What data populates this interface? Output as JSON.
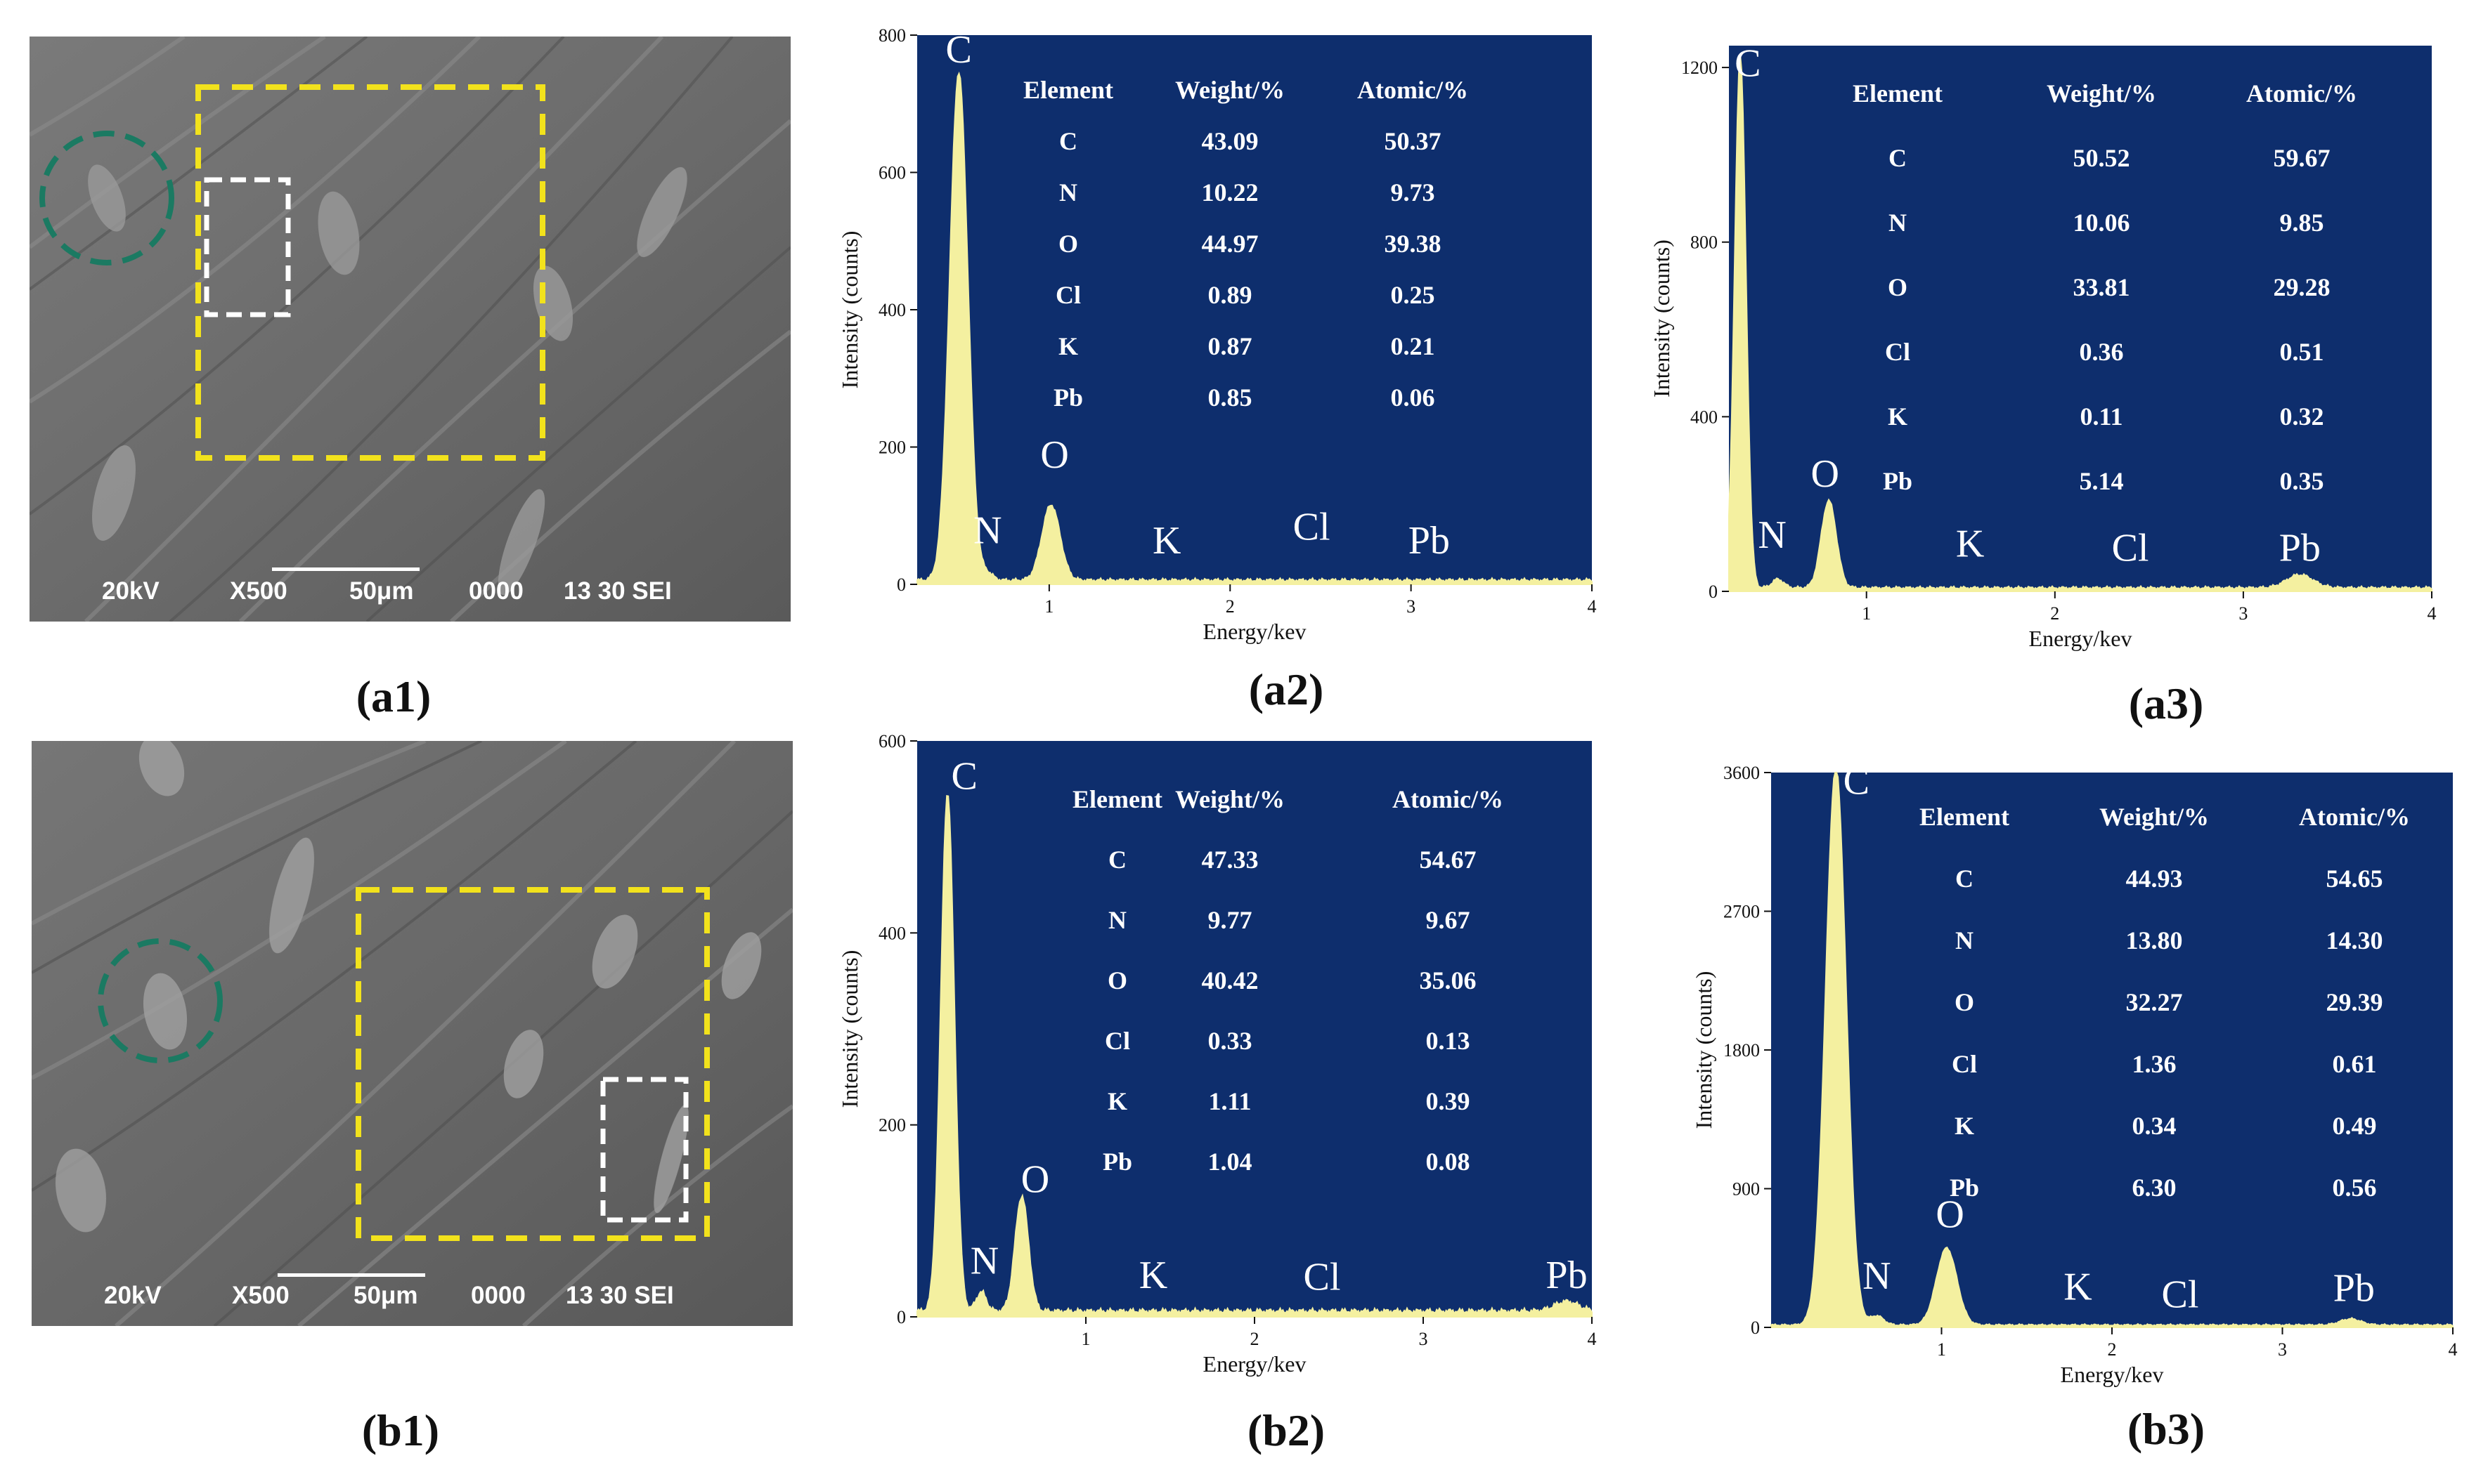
{
  "figure": {
    "panel_labels": {
      "a1": "(a1)",
      "a2": "(a2)",
      "a3": "(a3)",
      "b1": "(b1)",
      "b2": "(b2)",
      "b3": "(b3)"
    }
  },
  "sem_images": [
    {
      "id": "a1",
      "info": {
        "kv": "20kV",
        "mag": "X500",
        "scale": "50μm",
        "code": "0000",
        "extra": "13 30 SEI"
      }
    },
    {
      "id": "b1",
      "info": {
        "kv": "20kV",
        "mag": "X500",
        "scale": "50μm",
        "code": "0000",
        "extra": "13 30 SEI"
      }
    }
  ],
  "colors": {
    "plot_bg": "#0e2e6d",
    "spectrum": "#f4f0a0",
    "highlight_box": "#f2e21c",
    "detail_box": "#ffffff",
    "circle": "#1b7a62"
  },
  "chart_data": [
    {
      "id": "a2",
      "type": "area",
      "xlabel": "Energy/kev",
      "ylabel": "Intensity (counts)",
      "xlim": [
        0.27,
        4.0
      ],
      "ylim": [
        0,
        800
      ],
      "xticks": [
        1,
        2,
        3,
        4
      ],
      "yticks": [
        0,
        200,
        400,
        600,
        800
      ],
      "peaks": [
        {
          "element": "C",
          "energy": 0.5,
          "counts": 740,
          "width": 0.05,
          "label_x": 0.5,
          "label_y": 760
        },
        {
          "element": "N",
          "energy": 0.66,
          "counts": 10,
          "width": 0.03,
          "label_x": 0.66,
          "label_y": 60
        },
        {
          "element": "O",
          "energy": 1.01,
          "counts": 110,
          "width": 0.05,
          "label_x": 1.03,
          "label_y": 170
        },
        {
          "element": "K",
          "energy": 1.7,
          "counts": 0,
          "width": 0.03,
          "label_x": 1.65,
          "label_y": 45
        },
        {
          "element": "Cl",
          "energy": 2.45,
          "counts": 0,
          "width": 0.03,
          "label_x": 2.45,
          "label_y": 65
        },
        {
          "element": "Pb",
          "energy": 3.15,
          "counts": 0,
          "width": 0.05,
          "label_x": 3.1,
          "label_y": 45
        }
      ],
      "baseline": 6,
      "table": {
        "headers": [
          "Element",
          "Weight/%",
          "Atomic/%"
        ],
        "rows": [
          [
            "C",
            "43.09",
            "50.37"
          ],
          [
            "N",
            "10.22",
            "9.73"
          ],
          [
            "O",
            "44.97",
            "39.38"
          ],
          [
            "Cl",
            "0.89",
            "0.25"
          ],
          [
            "K",
            "0.87",
            "0.21"
          ],
          [
            "Pb",
            "0.85",
            "0.06"
          ]
        ]
      }
    },
    {
      "id": "a3",
      "type": "area",
      "xlabel": "Energy/kev",
      "ylabel": "Intensity (counts)",
      "xlim": [
        0.27,
        4.0
      ],
      "ylim": [
        0,
        1250
      ],
      "xticks": [
        1,
        2,
        3,
        4
      ],
      "yticks": [
        0,
        400,
        800,
        1200
      ],
      "peaks": [
        {
          "element": "C",
          "energy": 0.33,
          "counts": 1220,
          "width": 0.03,
          "label_x": 0.37,
          "label_y": 1180
        },
        {
          "element": "N",
          "energy": 0.53,
          "counts": 20,
          "width": 0.03,
          "label_x": 0.5,
          "label_y": 100
        },
        {
          "element": "O",
          "energy": 0.8,
          "counts": 200,
          "width": 0.04,
          "label_x": 0.78,
          "label_y": 240
        },
        {
          "element": "K",
          "energy": 1.6,
          "counts": 0,
          "width": 0.03,
          "label_x": 1.55,
          "label_y": 80
        },
        {
          "element": "Cl",
          "energy": 2.3,
          "counts": 0,
          "width": 0.03,
          "label_x": 2.4,
          "label_y": 70
        },
        {
          "element": "Pb",
          "energy": 3.3,
          "counts": 30,
          "width": 0.07,
          "label_x": 3.3,
          "label_y": 70
        }
      ],
      "baseline": 8,
      "table": {
        "headers": [
          "Element",
          "Weight/%",
          "Atomic/%"
        ],
        "rows": [
          [
            "C",
            "50.52",
            "59.67"
          ],
          [
            "N",
            "10.06",
            "9.85"
          ],
          [
            "O",
            "33.81",
            "29.28"
          ],
          [
            "Cl",
            "0.36",
            "0.51"
          ],
          [
            "K",
            "0.11",
            "0.32"
          ],
          [
            "Pb",
            "5.14",
            "0.35"
          ]
        ]
      }
    },
    {
      "id": "b2",
      "type": "area",
      "xlabel": "Energy/kev",
      "ylabel": "Intensity (counts)",
      "xlim": [
        0.0,
        4.0
      ],
      "ylim": [
        0,
        600
      ],
      "xticks": [
        1,
        2,
        3,
        4
      ],
      "yticks": [
        0,
        200,
        400,
        600
      ],
      "peaks": [
        {
          "element": "C",
          "energy": 0.18,
          "counts": 540,
          "width": 0.04,
          "label_x": 0.28,
          "label_y": 550
        },
        {
          "element": "N",
          "energy": 0.38,
          "counts": 20,
          "width": 0.03,
          "label_x": 0.4,
          "label_y": 45
        },
        {
          "element": "O",
          "energy": 0.62,
          "counts": 120,
          "width": 0.04,
          "label_x": 0.7,
          "label_y": 130
        },
        {
          "element": "K",
          "energy": 1.3,
          "counts": 0,
          "width": 0.03,
          "label_x": 1.4,
          "label_y": 30
        },
        {
          "element": "Cl",
          "energy": 2.2,
          "counts": 0,
          "width": 0.03,
          "label_x": 2.4,
          "label_y": 28
        },
        {
          "element": "Pb",
          "energy": 3.85,
          "counts": 10,
          "width": 0.07,
          "label_x": 3.85,
          "label_y": 30
        }
      ],
      "baseline": 6,
      "table": {
        "headers": [
          "Element",
          "Weight/%",
          "Atomic/%"
        ],
        "rows": [
          [
            "C",
            "47.33",
            "54.67"
          ],
          [
            "N",
            "9.77",
            "9.67"
          ],
          [
            "O",
            "40.42",
            "35.06"
          ],
          [
            "Cl",
            "0.33",
            "0.13"
          ],
          [
            "K",
            "1.11",
            "0.39"
          ],
          [
            "Pb",
            "1.04",
            "0.08"
          ]
        ]
      }
    },
    {
      "id": "b3",
      "type": "area",
      "xlabel": "Energy/kev",
      "ylabel": "Intensity (counts)",
      "xlim": [
        0.0,
        4.0
      ],
      "ylim": [
        0,
        3600
      ],
      "xticks": [
        1,
        2,
        3,
        4
      ],
      "yticks": [
        0,
        900,
        1800,
        2700,
        3600
      ],
      "peaks": [
        {
          "element": "C",
          "energy": 0.38,
          "counts": 3620,
          "width": 0.06,
          "label_x": 0.5,
          "label_y": 3460
        },
        {
          "element": "N",
          "energy": 0.62,
          "counts": 60,
          "width": 0.04,
          "label_x": 0.62,
          "label_y": 250
        },
        {
          "element": "O",
          "energy": 1.03,
          "counts": 500,
          "width": 0.06,
          "label_x": 1.05,
          "label_y": 650
        },
        {
          "element": "K",
          "energy": 1.7,
          "counts": 0,
          "width": 0.03,
          "label_x": 1.8,
          "label_y": 180
        },
        {
          "element": "Cl",
          "energy": 2.3,
          "counts": 0,
          "width": 0.03,
          "label_x": 2.4,
          "label_y": 130
        },
        {
          "element": "Pb",
          "energy": 3.4,
          "counts": 40,
          "width": 0.06,
          "label_x": 3.42,
          "label_y": 170
        }
      ],
      "baseline": 15,
      "table": {
        "headers": [
          "Element",
          "Weight/%",
          "Atomic/%"
        ],
        "rows": [
          [
            "C",
            "44.93",
            "54.65"
          ],
          [
            "N",
            "13.80",
            "14.30"
          ],
          [
            "O",
            "32.27",
            "29.39"
          ],
          [
            "Cl",
            "1.36",
            "0.61"
          ],
          [
            "K",
            "0.34",
            "0.49"
          ],
          [
            "Pb",
            "6.30",
            "0.56"
          ]
        ]
      }
    }
  ]
}
